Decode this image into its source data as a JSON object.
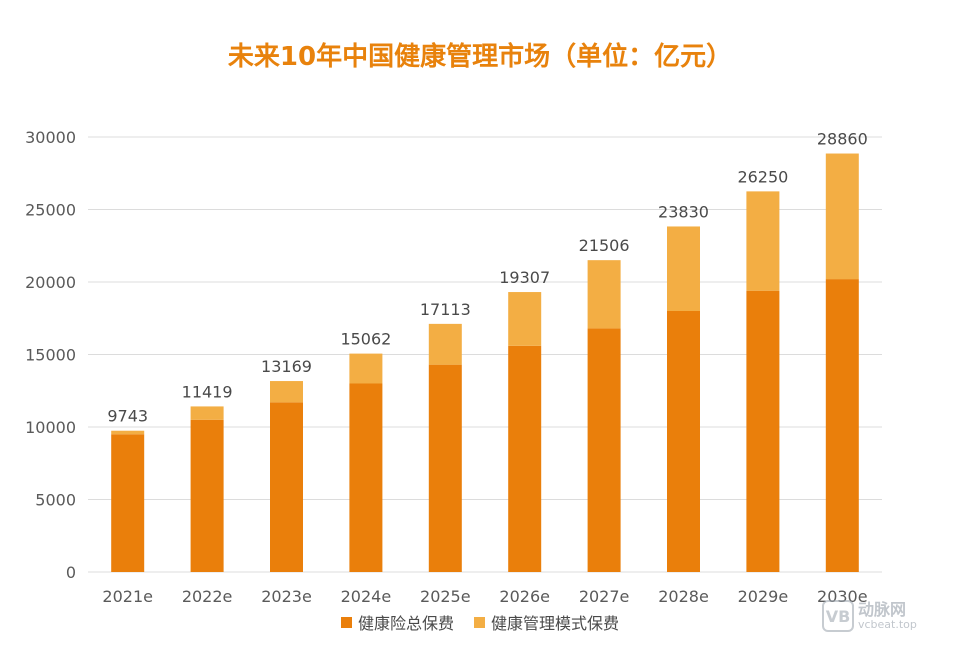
{
  "chart_data": {
    "type": "bar",
    "stacked": true,
    "title": "未来10年中国健康管理市场（单位：亿元）",
    "xlabel": "",
    "ylabel": "",
    "categories": [
      "2021e",
      "2022e",
      "2023e",
      "2024e",
      "2025e",
      "2026e",
      "2027e",
      "2028e",
      "2029e",
      "2030e"
    ],
    "series": [
      {
        "name": "健康险总保费",
        "color": "#ea7f0b",
        "values": [
          9500,
          10500,
          11700,
          13000,
          14300,
          15600,
          16800,
          18000,
          19400,
          20200
        ]
      },
      {
        "name": "健康管理模式保费",
        "color": "#f3ae44",
        "values": [
          243,
          919,
          1469,
          2062,
          2813,
          3707,
          4706,
          5830,
          6850,
          8660
        ]
      }
    ],
    "totals": [
      9743,
      11419,
      13169,
      15062,
      17113,
      19307,
      21506,
      23830,
      26250,
      28860
    ],
    "ylim": [
      0,
      30000
    ],
    "yticks": [
      0,
      5000,
      10000,
      15000,
      20000,
      25000,
      30000
    ],
    "grid": true,
    "legend_position": "bottom"
  },
  "watermark": {
    "logo": "VB",
    "name": "动脉网",
    "url": "vcbeat.top"
  }
}
